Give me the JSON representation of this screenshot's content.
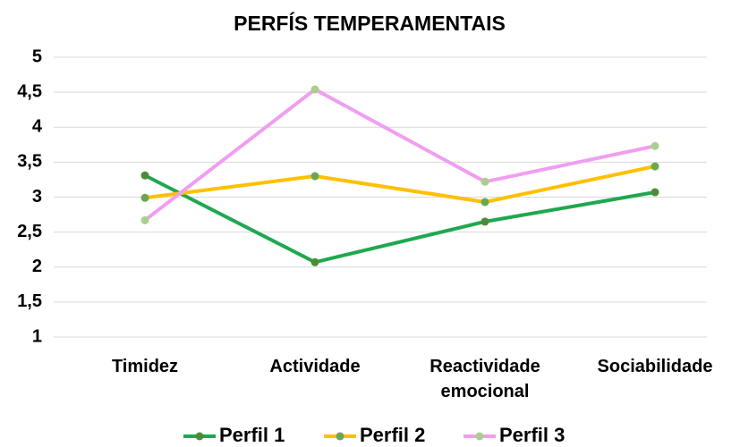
{
  "chart_data": {
    "type": "line",
    "title": "PERFÍS TEMPERAMENTAIS",
    "categories": [
      "Timidez",
      "Actividade",
      "Reactividade emocional",
      "Sociabilidade"
    ],
    "series": [
      {
        "name": "Perfil 1",
        "color": "#1fa84f",
        "marker_color": "#4f8a3a",
        "values": [
          3.31,
          2.07,
          2.65,
          3.07
        ]
      },
      {
        "name": "Perfil 2",
        "color": "#ffc000",
        "marker_color": "#6aa84f",
        "values": [
          2.99,
          3.3,
          2.93,
          3.44
        ]
      },
      {
        "name": "Perfil 3",
        "color": "#f09ef0",
        "marker_color": "#a8d08d",
        "values": [
          2.67,
          4.54,
          3.22,
          3.73
        ]
      }
    ],
    "ylim": [
      1,
      5
    ],
    "yticks": [
      1,
      {
        "value": 1.5,
        "label": "1,5"
      },
      2,
      {
        "value": 2.5,
        "label": "2,5"
      },
      3,
      {
        "value": 3.5,
        "label": "3,5"
      },
      4,
      {
        "value": 4.5,
        "label": "4,5"
      },
      5
    ],
    "grid": true,
    "legend": "bottom"
  }
}
